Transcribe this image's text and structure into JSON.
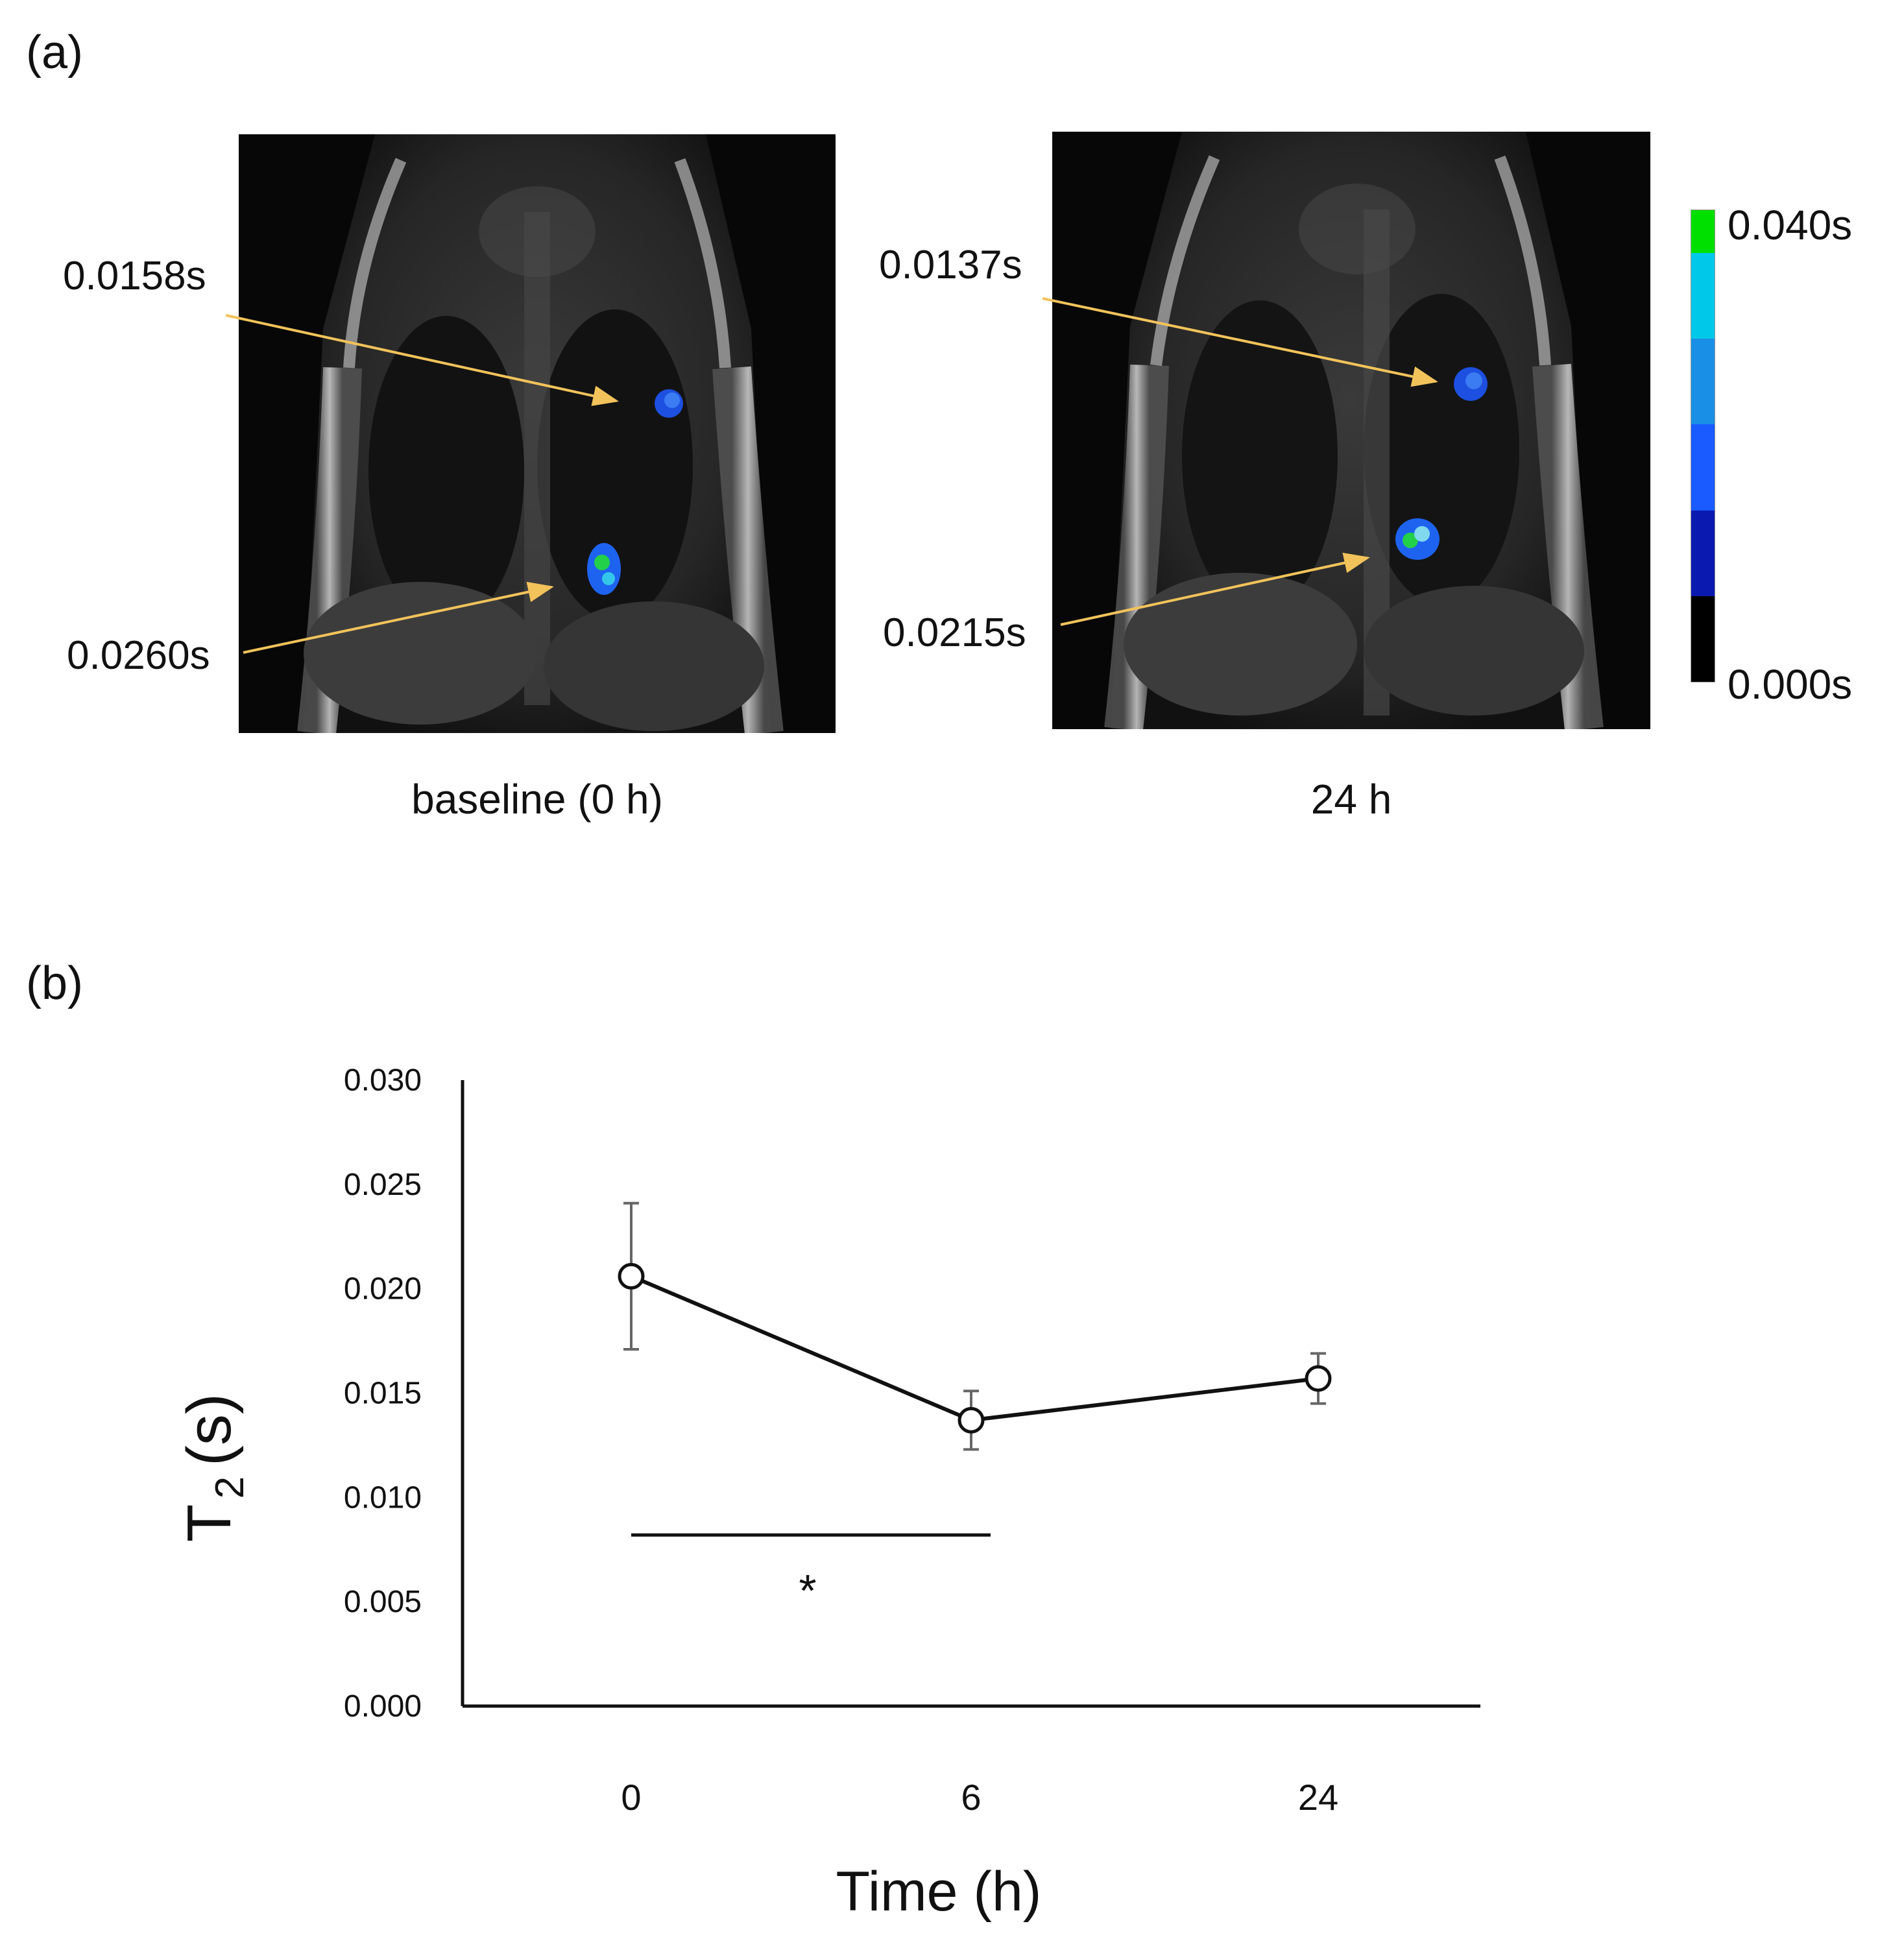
{
  "panel_a": {
    "label": "(a)",
    "images": [
      {
        "caption": "baseline (0 h)",
        "annotations": [
          {
            "value": "0.0158s"
          },
          {
            "value": "0.0260s"
          }
        ]
      },
      {
        "caption": "24 h",
        "annotations": [
          {
            "value": "0.0137s"
          },
          {
            "value": "0.0215s"
          }
        ]
      }
    ],
    "colorbar": {
      "max_label": "0.040s",
      "min_label": "0.000s",
      "colors": [
        "#00e000",
        "#00c8e8",
        "#1a8fe6",
        "#1a5bff",
        "#0a1ab0",
        "#000000"
      ]
    },
    "arrow_color": "#f2c35b"
  },
  "panel_b": {
    "label": "(b)",
    "chart_data": {
      "type": "line",
      "categories": [
        "0",
        "6",
        "24"
      ],
      "series": [
        {
          "name": "T2",
          "values": [
            0.0206,
            0.0137,
            0.0157
          ],
          "errors": [
            0.0035,
            0.0014,
            0.0012
          ]
        }
      ],
      "xlabel": "Time (h)",
      "ylabel_main": "T",
      "ylabel_sub": "2",
      "ylabel_unit": "(s)",
      "ylim": [
        0,
        0.03
      ],
      "yticks": [
        "0.000",
        "0.005",
        "0.010",
        "0.015",
        "0.020",
        "0.025",
        "0.030"
      ],
      "significance": {
        "from": "0",
        "to": "6",
        "level": 0.0082,
        "marker": "*"
      }
    }
  }
}
